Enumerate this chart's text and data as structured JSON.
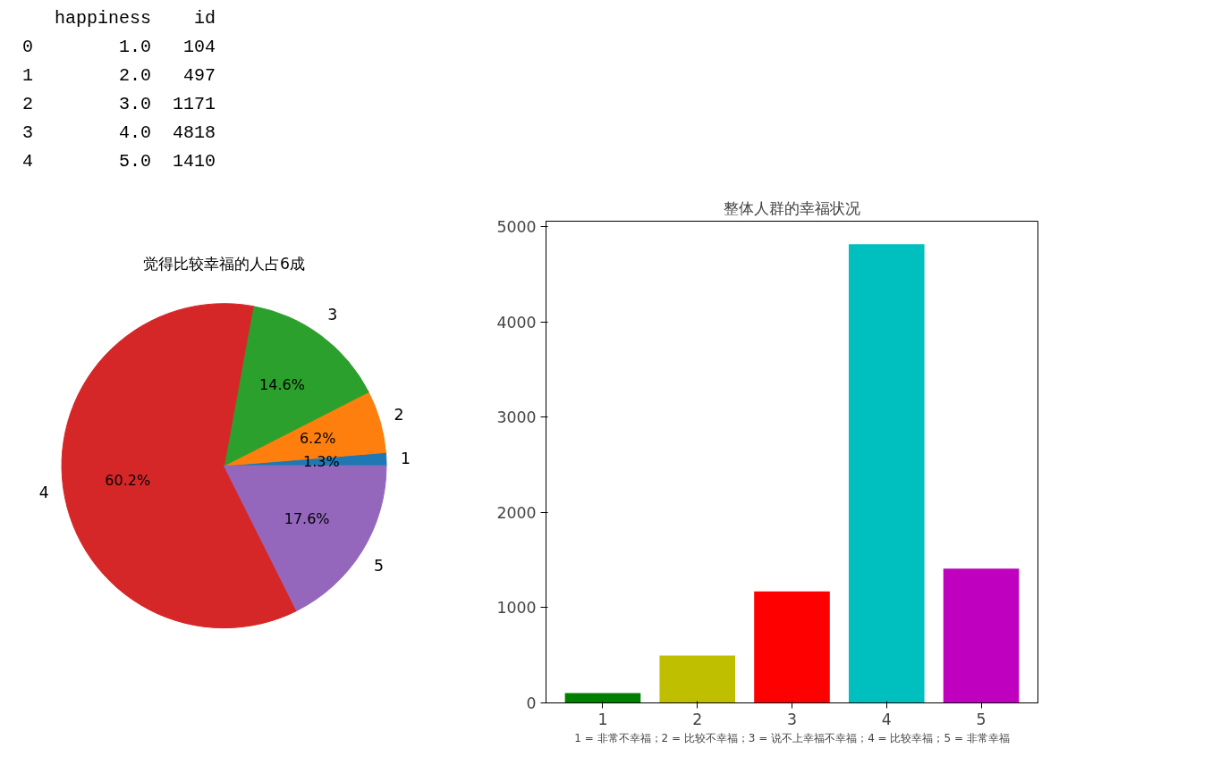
{
  "chart_data": [
    {
      "type": "other",
      "annotations": [
        "   happiness    id",
        "0        1.0   104",
        "1        2.0   497",
        "2        3.0  1171",
        "3        4.0  4818",
        "4        5.0  1410"
      ]
    },
    {
      "type": "pie",
      "title": "觉得比较幸福的人占6成",
      "categories": [
        "1",
        "2",
        "3",
        "4",
        "5"
      ],
      "values": [
        1.3,
        6.2,
        14.6,
        60.2,
        17.6
      ],
      "value_labels": [
        "1.3%",
        "6.2%",
        "14.6%",
        "60.2%",
        "17.6%"
      ],
      "colors": [
        "#1f77b4",
        "#ff7f0e",
        "#2ca02c",
        "#d62728",
        "#9467bd"
      ]
    },
    {
      "type": "bar",
      "title": "整体人群的幸福状况",
      "xlabel": "1 = 非常不幸福；2 = 比较不幸福；3 = 说不上幸福不幸福；4 = 比较幸福；5 = 非常幸福",
      "categories": [
        "1",
        "2",
        "3",
        "4",
        "5"
      ],
      "values": [
        104,
        497,
        1171,
        4818,
        1410
      ],
      "colors": [
        "#008000",
        "#bfbf00",
        "#ff0000",
        "#00bfbf",
        "#bf00bf"
      ],
      "ylim": [
        0,
        5060
      ],
      "yticks": [
        0,
        1000,
        2000,
        3000,
        4000,
        5000
      ],
      "grid": false
    }
  ]
}
